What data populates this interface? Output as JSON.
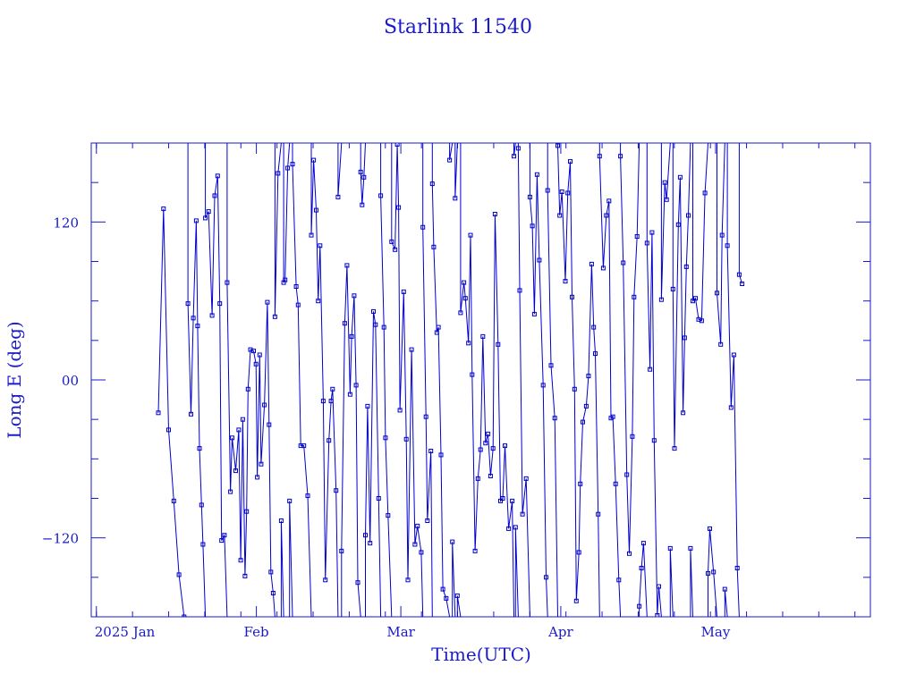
{
  "chart_data": {
    "type": "line",
    "title": "Starlink 11540",
    "xlabel": "Time(UTC)",
    "ylabel": "Long E (deg)",
    "xlim": [
      "2024-12-31",
      "2025-05-31"
    ],
    "ylim": [
      -180,
      180
    ],
    "x_tick_labels": [
      {
        "label": "2025 Jan",
        "date": "2025-01-01"
      },
      {
        "label": "Feb",
        "date": "2025-02-01"
      },
      {
        "label": "Mar",
        "date": "2025-03-01"
      },
      {
        "label": "Apr",
        "date": "2025-04-01"
      },
      {
        "label": "May",
        "date": "2025-05-01"
      }
    ],
    "y_tick_labels": [
      {
        "label": "−120",
        "value": -120
      },
      {
        "label": "00",
        "value": 0
      },
      {
        "label": "120",
        "value": 120
      }
    ],
    "grid": false,
    "series": [
      {
        "marker": "square",
        "color": "#0000cc",
        "x": [
          "2025-01-13",
          "2025-01-14",
          "2025-01-15",
          "2025-01-16",
          "2025-01-17",
          "2025-01-18"
        ],
        "y": [
          -25,
          130,
          -38,
          -92,
          -148,
          -180
        ]
      }
    ],
    "visible_start": "2025-01-13",
    "visible_end": "2025-05-06",
    "track_note_samples_per_day": 2
  },
  "colors": {
    "axes": "#1a1acc",
    "series": "#0000cc",
    "background": "#ffffff"
  }
}
